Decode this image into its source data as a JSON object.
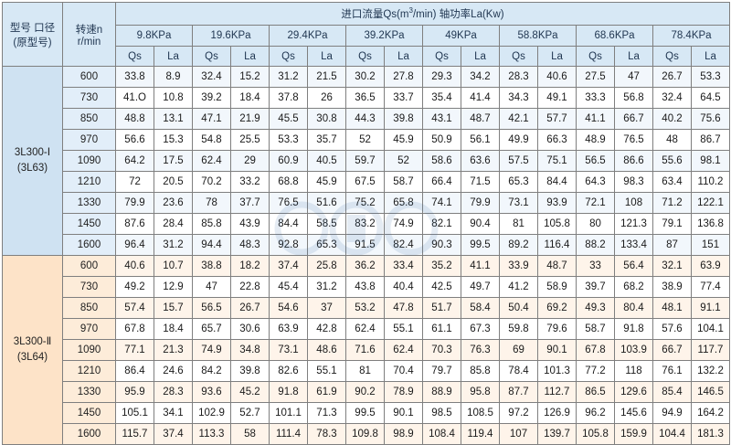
{
  "header": {
    "model_col": [
      "型号 口径",
      "(原型号)"
    ],
    "speed_col": [
      "转速n",
      "r/min"
    ],
    "title_prefix": "进口流量Qs(m",
    "title_sup": "3",
    "title_suffix": "/min)  轴功率La(Kw)",
    "pressures": [
      "9.8KPa",
      "19.6KPa",
      "29.4KPa",
      "39.2KPa",
      "49KPa",
      "58.8KPa",
      "68.6KPa",
      "78.4KPa"
    ],
    "sub_qs": "Qs",
    "sub_la": "La"
  },
  "groups": [
    {
      "model": [
        "3L300-Ⅰ",
        "(3L63)"
      ],
      "rows": [
        {
          "speed": "600",
          "values": [
            "33.8",
            "8.9",
            "32.4",
            "15.2",
            "31.2",
            "21.5",
            "30.2",
            "27.8",
            "29.3",
            "34.2",
            "28.3",
            "40.6",
            "27.5",
            "47",
            "26.7",
            "53.3"
          ]
        },
        {
          "speed": "730",
          "values": [
            "41.O",
            "10.8",
            "39.2",
            "18.4",
            "37.8",
            "26",
            "36.5",
            "33.7",
            "35.4",
            "41.4",
            "34.3",
            "49.1",
            "33.3",
            "56.8",
            "32.4",
            "64.5"
          ]
        },
        {
          "speed": "850",
          "values": [
            "48.8",
            "13.1",
            "47.1",
            "21.9",
            "45.5",
            "30.8",
            "44.3",
            "39.8",
            "43.1",
            "48.7",
            "42.1",
            "57.7",
            "41.1",
            "66.7",
            "40.2",
            "75.6"
          ]
        },
        {
          "speed": "970",
          "values": [
            "56.6",
            "15.3",
            "54.8",
            "25.5",
            "53.3",
            "35.7",
            "52",
            "45.9",
            "50.9",
            "56.1",
            "49.9",
            "66.3",
            "48.9",
            "76.5",
            "48",
            "86.7"
          ]
        },
        {
          "speed": "1090",
          "values": [
            "64.2",
            "17.5",
            "62.4",
            "29",
            "60.9",
            "40.5",
            "59.7",
            "52",
            "58.6",
            "63.6",
            "57.5",
            "75.1",
            "56.5",
            "86.6",
            "55.6",
            "98.1"
          ]
        },
        {
          "speed": "1210",
          "values": [
            "72",
            "20.5",
            "70.2",
            "33.2",
            "68.8",
            "45.9",
            "67.5",
            "58.7",
            "66.4",
            "71.5",
            "65.3",
            "84.4",
            "64.3",
            "98.3",
            "63.4",
            "110.2"
          ]
        },
        {
          "speed": "1330",
          "values": [
            "79.9",
            "23.6",
            "78",
            "37.7",
            "76.5",
            "51.6",
            "75.2",
            "65.8",
            "74.1",
            "79.9",
            "73.1",
            "93.9",
            "72.1",
            "108",
            "71.2",
            "122.1"
          ]
        },
        {
          "speed": "1450",
          "values": [
            "87.6",
            "28.4",
            "85.8",
            "43.9",
            "84.4",
            "58.5",
            "83.2",
            "74.9",
            "82.1",
            "90.4",
            "81",
            "105.8",
            "80",
            "121.3",
            "79.1",
            "136.8"
          ]
        },
        {
          "speed": "1600",
          "values": [
            "96.4",
            "31.2",
            "94.4",
            "48.3",
            "92.8",
            "65.3",
            "91.5",
            "82.4",
            "90.3",
            "99.5",
            "89.2",
            "116.4",
            "88.2",
            "133.4",
            "87",
            "151"
          ]
        }
      ]
    },
    {
      "model": [
        "3L300-Ⅱ",
        "(3L64)"
      ],
      "rows": [
        {
          "speed": "600",
          "values": [
            "40.6",
            "10.7",
            "38.8",
            "18.2",
            "37.4",
            "25.8",
            "36.2",
            "33.4",
            "35.2",
            "41.1",
            "33.9",
            "48.7",
            "33",
            "56.4",
            "32.1",
            "63.9"
          ]
        },
        {
          "speed": "730",
          "values": [
            "49.2",
            "12.9",
            "47",
            "22.8",
            "45.4",
            "31.2",
            "43.8",
            "40.4",
            "42.5",
            "49.7",
            "41.2",
            "58.9",
            "39.7",
            "68.2",
            "38.9",
            "77.4"
          ]
        },
        {
          "speed": "850",
          "values": [
            "57.4",
            "15.7",
            "56.5",
            "26.7",
            "54.6",
            "37",
            "53.2",
            "47.8",
            "51.7",
            "58.4",
            "50.4",
            "69.2",
            "49.3",
            "80.4",
            "48.1",
            "91.1"
          ]
        },
        {
          "speed": "970",
          "values": [
            "67.8",
            "18.4",
            "65.7",
            "30.6",
            "63.9",
            "42.8",
            "62.4",
            "55.1",
            "61.1",
            "67.3",
            "59.8",
            "79.6",
            "58.7",
            "91.8",
            "57.6",
            "104.1"
          ]
        },
        {
          "speed": "1090",
          "values": [
            "77.1",
            "21.3",
            "74.9",
            "34.8",
            "73.1",
            "48.6",
            "71.6",
            "62.4",
            "70.3",
            "76.3",
            "69",
            "90.1",
            "67.8",
            "103.9",
            "66.7",
            "117.7"
          ]
        },
        {
          "speed": "1210",
          "values": [
            "86.4",
            "24.6",
            "84.2",
            "39.8",
            "82.6",
            "55.1",
            "81",
            "70.4",
            "79.7",
            "85.8",
            "78.4",
            "101.3",
            "77.2",
            "118",
            "76.1",
            "132.2"
          ]
        },
        {
          "speed": "1330",
          "values": [
            "95.9",
            "28.3",
            "93.6",
            "45.2",
            "91.8",
            "61.9",
            "90.2",
            "78.9",
            "88.9",
            "95.8",
            "87.7",
            "112.7",
            "86.5",
            "129.6",
            "85.4",
            "146.5"
          ]
        },
        {
          "speed": "1450",
          "values": [
            "105.1",
            "34.1",
            "102.9",
            "52.7",
            "101.1",
            "71.3",
            "99.5",
            "90.1",
            "98.5",
            "108.5",
            "97.2",
            "126.9",
            "96.2",
            "145.6",
            "94.9",
            "164.2"
          ]
        },
        {
          "speed": "1600",
          "values": [
            "115.7",
            "37.4",
            "113.3",
            "58",
            "111.4",
            "78.3",
            "109.8",
            "98.9",
            "108.4",
            "119.4",
            "107",
            "139.7",
            "105.8",
            "159.9",
            "104.4",
            "181.3"
          ]
        }
      ]
    }
  ]
}
